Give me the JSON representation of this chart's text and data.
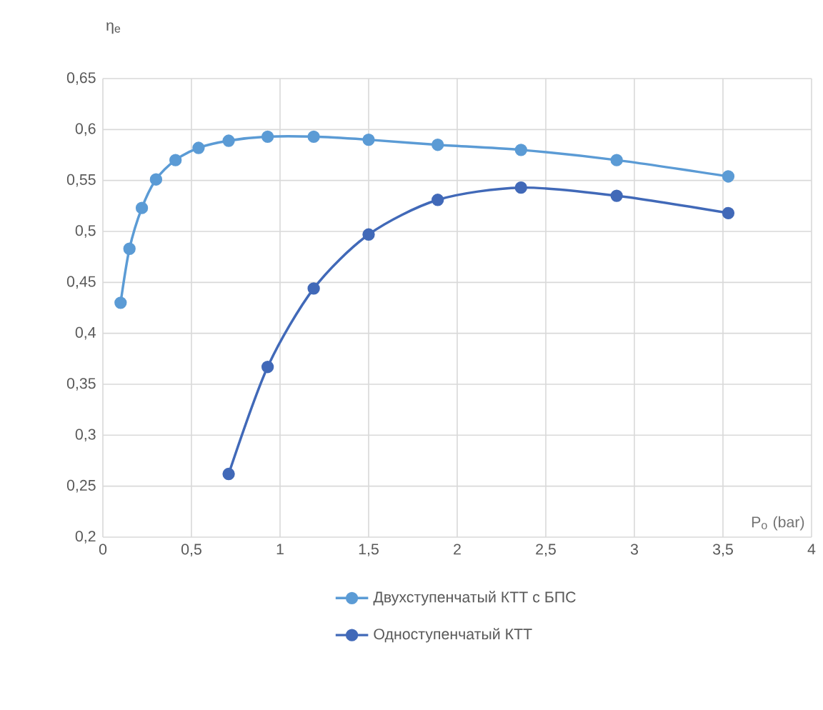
{
  "chart_data": {
    "type": "line",
    "xlabel": "P$_{o}$ (bar)",
    "ylabel": "η$_{e}$",
    "xlim": [
      0,
      4
    ],
    "xticks": [
      {
        "value": 0,
        "label": "0"
      },
      {
        "value": 0.5,
        "label": "0,5"
      },
      {
        "value": 1,
        "label": "1"
      },
      {
        "value": 1.5,
        "label": "1,5"
      },
      {
        "value": 2,
        "label": "2"
      },
      {
        "value": 2.5,
        "label": "2,5"
      },
      {
        "value": 3,
        "label": "3"
      },
      {
        "value": 3.5,
        "label": "3,5"
      },
      {
        "value": 4,
        "label": "4"
      }
    ],
    "ylim": [
      0.2,
      0.65
    ],
    "yticks": [
      {
        "value": 0.2,
        "label": "0,2"
      },
      {
        "value": 0.25,
        "label": "0,25"
      },
      {
        "value": 0.3,
        "label": "0,3"
      },
      {
        "value": 0.35,
        "label": "0,35"
      },
      {
        "value": 0.4,
        "label": "0,4"
      },
      {
        "value": 0.45,
        "label": "0,45"
      },
      {
        "value": 0.5,
        "label": "0,5"
      },
      {
        "value": 0.55,
        "label": "0,55"
      },
      {
        "value": 0.6,
        "label": "0,6"
      },
      {
        "value": 0.65,
        "label": "0,65"
      }
    ],
    "grid": true,
    "legend": "bottom",
    "marker": "circle",
    "line_style": "solid",
    "series": [
      {
        "name": "Двухступенчатый КТТ с БПС",
        "color": "#5b9bd5",
        "x": [
          0.1,
          0.15,
          0.22,
          0.3,
          0.41,
          0.54,
          0.71,
          0.93,
          1.19,
          1.5,
          1.89,
          2.36,
          2.9,
          3.53
        ],
        "values": [
          0.43,
          0.483,
          0.523,
          0.551,
          0.57,
          0.582,
          0.589,
          0.593,
          0.593,
          0.59,
          0.585,
          0.58,
          0.57,
          0.554
        ]
      },
      {
        "name": "Одноступенчатый КТТ",
        "color": "#4169b8",
        "x": [
          0.71,
          0.93,
          1.19,
          1.5,
          1.89,
          2.36,
          2.9,
          3.53
        ],
        "values": [
          0.262,
          0.367,
          0.444,
          0.497,
          0.531,
          0.543,
          0.535,
          0.518
        ]
      }
    ]
  }
}
